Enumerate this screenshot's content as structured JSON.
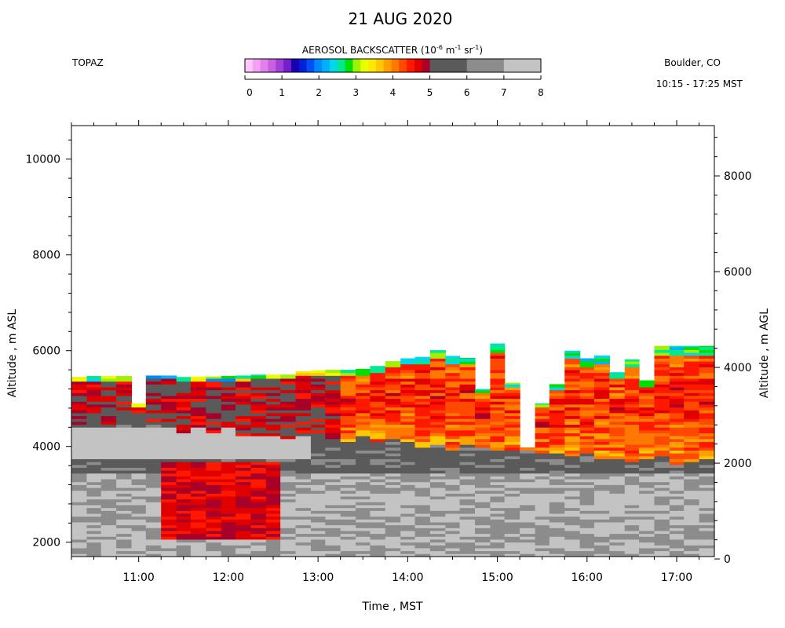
{
  "header": {
    "title": "21 AUG 2020",
    "instrument": "TOPAZ",
    "location": "Boulder, CO",
    "time_range": "10:15 - 17:25 MST"
  },
  "colorbar": {
    "title_main": "AEROSOL BACKSCATTER (10",
    "title_exp1": "-6",
    "title_mid": " m",
    "title_exp2": "-1",
    "title_sr": " sr",
    "title_exp3": "-1",
    "title_end": ")",
    "ticks": [
      "0",
      "1",
      "2",
      "3",
      "4",
      "5",
      "6",
      "7",
      "8"
    ],
    "colors_fine": [
      "#ffc8ff",
      "#f5a0f5",
      "#e080e8",
      "#c860e0",
      "#a040d8",
      "#7820c8",
      "#1800b0",
      "#0020d8",
      "#0050f0",
      "#0088ff",
      "#00b0ff",
      "#00d8e8",
      "#00e890",
      "#00e000",
      "#a0f000",
      "#e8ff00",
      "#ffe800",
      "#ffc800",
      "#ffa000",
      "#ff7800",
      "#ff4800",
      "#ff1800",
      "#e00000",
      "#a80028"
    ],
    "colors_coarse": [
      "#5a5a5a",
      "#8c8c8c",
      "#c3c3c3"
    ]
  },
  "chart_data": {
    "type": "heatmap",
    "title": "21 AUG 2020",
    "xlabel": "Time , MST",
    "ylabel_left": "Altitude , m ASL",
    "ylabel_right": "Altitude , m AGL",
    "x_ticks": [
      "11:00",
      "12:00",
      "13:00",
      "14:00",
      "15:00",
      "16:00",
      "17:00"
    ],
    "y_left_ticks": [
      "2000",
      "4000",
      "6000",
      "8000",
      "10000"
    ],
    "y_right_ticks": [
      "0",
      "2000",
      "4000",
      "6000",
      "8000"
    ],
    "xlim_hours": [
      10.25,
      17.42
    ],
    "ylim_m_asl": [
      1700,
      10700
    ],
    "agl_offset_m": 1650,
    "value_range": [
      0,
      8
    ],
    "time_hours": [
      10.25,
      10.42,
      10.58,
      10.75,
      10.92,
      11.08,
      11.25,
      11.42,
      11.58,
      11.75,
      11.92,
      12.08,
      12.25,
      12.42,
      12.58,
      12.75,
      12.92,
      13.08,
      13.25,
      13.42,
      13.58,
      13.75,
      13.92,
      14.08,
      14.25,
      14.42,
      14.58,
      14.75,
      14.92,
      15.08,
      15.25,
      15.42,
      15.58,
      15.75,
      15.92,
      16.08,
      16.25,
      16.42,
      16.58,
      16.75,
      16.92,
      17.08,
      17.25
    ],
    "top_altitude_m": [
      5450,
      5470,
      5470,
      5470,
      4900,
      5480,
      5480,
      5450,
      5460,
      5460,
      5470,
      5480,
      5500,
      5500,
      5500,
      5570,
      5590,
      5600,
      5600,
      5620,
      5680,
      5780,
      5840,
      5870,
      6010,
      5890,
      5850,
      5200,
      6150,
      5330,
      3980,
      4900,
      5300,
      6000,
      5840,
      5900,
      5550,
      5820,
      5380,
      6100,
      6100,
      6100,
      6100
    ],
    "profile_bands": [
      {
        "name": "gray lower layer",
        "value_range": [
          6,
          8
        ],
        "altitude_m": [
          1700,
          3400
        ]
      },
      {
        "name": "smoke layer (afternoon)",
        "value_range": [
          3,
          5
        ],
        "altitude_m": [
          3500,
          6100
        ]
      },
      {
        "name": "smoke layer (midday, lower)",
        "value_range": [
          4.5,
          5
        ],
        "altitude_m": [
          2000,
          3700
        ]
      }
    ]
  }
}
